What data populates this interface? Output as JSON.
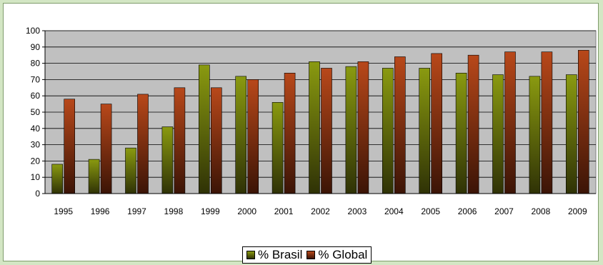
{
  "chart_data": {
    "type": "bar",
    "categories": [
      "1995",
      "1996",
      "1997",
      "1998",
      "1999",
      "2000",
      "2001",
      "2002",
      "2003",
      "2004",
      "2005",
      "2006",
      "2007",
      "2008",
      "2009"
    ],
    "series": [
      {
        "name": "% Brasil",
        "values": [
          18,
          21,
          28,
          41,
          79,
          72,
          56,
          81,
          78,
          77,
          77,
          74,
          73,
          72,
          73
        ],
        "color_top": "#8a9a10",
        "color_bottom": "#2f3206"
      },
      {
        "name": "% Global",
        "values": [
          58,
          55,
          61,
          65,
          65,
          70,
          74,
          77,
          81,
          84,
          86,
          85,
          87,
          87,
          88
        ],
        "color_top": "#b8481a",
        "color_bottom": "#3b1406"
      }
    ],
    "ylim": [
      0,
      100
    ],
    "yticks": [
      0,
      10,
      20,
      30,
      40,
      50,
      60,
      70,
      80,
      90,
      100
    ],
    "grid": true,
    "plot_background": "#c0c0c0",
    "legend_position": "bottom",
    "title": "",
    "xlabel": "",
    "ylabel": ""
  }
}
